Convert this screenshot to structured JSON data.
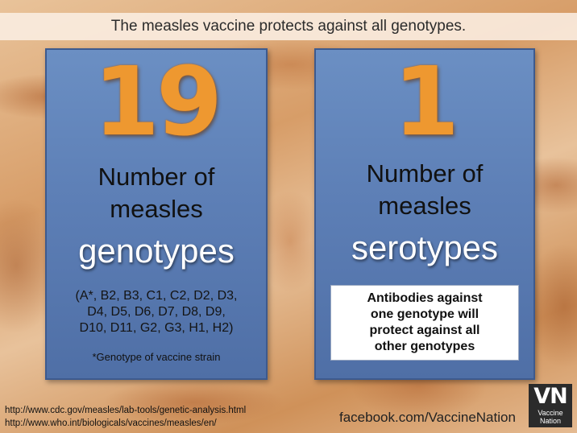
{
  "banner": {
    "title": "The measles vaccine protects against all genotypes."
  },
  "left_panel": {
    "number": "19",
    "label_line1": "Number of",
    "label_line2": "measles",
    "type_word": "genotypes",
    "genotype_list": [
      "(A*, B2, B3, C1, C2, D2, D3,",
      "D4, D5, D6, D7, D8, D9,",
      "D10, D11, G2, G3, H1, H2)"
    ],
    "vaccine_note": "*Genotype of vaccine strain"
  },
  "right_panel": {
    "number": "1",
    "label_line1": "Number of",
    "label_line2": "measles",
    "type_word": "serotypes",
    "antibody_note": [
      "Antibodies against",
      "one genotype will",
      "protect against all",
      "other genotypes"
    ]
  },
  "sources": [
    "http://www.cdc.gov/measles/lab-tools/genetic-analysis.html",
    "http://www.who.int/biologicals/vaccines/measles/en/"
  ],
  "footer": {
    "facebook": "facebook.com/VaccineNation"
  },
  "logo": {
    "letters": "VN",
    "line1": "Vaccine",
    "line2": "Nation"
  }
}
